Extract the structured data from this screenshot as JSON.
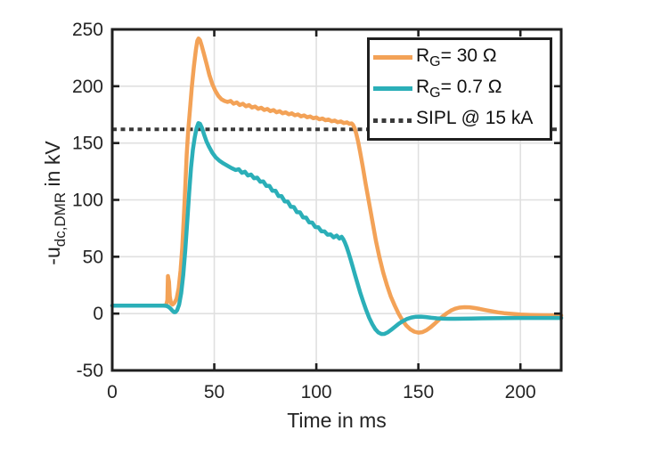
{
  "chart_data": {
    "type": "line",
    "title": "",
    "xlabel": "Time in ms",
    "ylabel": {
      "prefix": "-u",
      "sub": "dc,DMR",
      "suffix": " in kV"
    },
    "xlim": [
      0,
      220
    ],
    "ylim": [
      -50,
      250
    ],
    "xticks": [
      0,
      50,
      100,
      150,
      200
    ],
    "yticks": [
      -50,
      0,
      50,
      100,
      150,
      200,
      250
    ],
    "grid": true,
    "legend_position": "top-right",
    "sipl_value_kV": 162,
    "colors": {
      "axis": "#1f1f1f",
      "grid": "#e0e0e0",
      "tick_text": "#242424",
      "background": "#ffffff",
      "orange": "#f3a257",
      "teal": "#2bafb8",
      "sipl": "#3a3a3a"
    },
    "series": [
      {
        "id": "rg30",
        "name": "R_G = 30 Ohm",
        "color": "#f3a257",
        "style": "solid",
        "points": [
          [
            0,
            7
          ],
          [
            8,
            7
          ],
          [
            16,
            7
          ],
          [
            22,
            7
          ],
          [
            25,
            7
          ],
          [
            26.5,
            7.5
          ],
          [
            27,
            12
          ],
          [
            27.3,
            33
          ],
          [
            27.8,
            28
          ],
          [
            28.2,
            15
          ],
          [
            28.8,
            9
          ],
          [
            29.6,
            8
          ],
          [
            30.5,
            9.5
          ],
          [
            31.5,
            13
          ],
          [
            32.5,
            22
          ],
          [
            33.5,
            38
          ],
          [
            34.3,
            58
          ],
          [
            35,
            82
          ],
          [
            35.8,
            112
          ],
          [
            36.5,
            140
          ],
          [
            37.2,
            160
          ],
          [
            38,
            178
          ],
          [
            39,
            199
          ],
          [
            40,
            217
          ],
          [
            41,
            232
          ],
          [
            41.7,
            240
          ],
          [
            42.3,
            242
          ],
          [
            43,
            240.5
          ],
          [
            43.8,
            236
          ],
          [
            45,
            228
          ],
          [
            46.3,
            219
          ],
          [
            47.6,
            210
          ],
          [
            49,
            202
          ],
          [
            50.5,
            196
          ],
          [
            52,
            191.5
          ],
          [
            53.5,
            188.5
          ],
          [
            55,
            187
          ],
          [
            56.5,
            186.2
          ],
          [
            58,
            187
          ],
          [
            59.5,
            184.6
          ],
          [
            61,
            185.8
          ],
          [
            62.5,
            183.4
          ],
          [
            64,
            184.6
          ],
          [
            65.5,
            182.3
          ],
          [
            67,
            183.4
          ],
          [
            68.5,
            181.2
          ],
          [
            70,
            182.2
          ],
          [
            71.5,
            180.1
          ],
          [
            73,
            181.1
          ],
          [
            74.5,
            179.1
          ],
          [
            76,
            180
          ],
          [
            77.5,
            178.1
          ],
          [
            79,
            179
          ],
          [
            80.5,
            177.1
          ],
          [
            82,
            178
          ],
          [
            83.5,
            176.2
          ],
          [
            85,
            177
          ],
          [
            86.5,
            175.3
          ],
          [
            88,
            176.1
          ],
          [
            89.5,
            174.4
          ],
          [
            91,
            175.2
          ],
          [
            92.5,
            173.5
          ],
          [
            94,
            174.3
          ],
          [
            95.5,
            172.7
          ],
          [
            97,
            173.4
          ],
          [
            98.5,
            171.8
          ],
          [
            100,
            172.5
          ],
          [
            101.5,
            170.9
          ],
          [
            103,
            171.6
          ],
          [
            104.5,
            170.1
          ],
          [
            106,
            170.7
          ],
          [
            107.5,
            169.2
          ],
          [
            109,
            169.8
          ],
          [
            110.5,
            168.4
          ],
          [
            112,
            169
          ],
          [
            113.5,
            167.6
          ],
          [
            115,
            168.2
          ],
          [
            116.2,
            166.9
          ],
          [
            117.3,
            167.3
          ],
          [
            118,
            166
          ],
          [
            118.8,
            163
          ],
          [
            119.6,
            158
          ],
          [
            120.5,
            151
          ],
          [
            121.5,
            142
          ],
          [
            122.8,
            129
          ],
          [
            124.2,
            114
          ],
          [
            125.8,
            98
          ],
          [
            127.5,
            81
          ],
          [
            129.2,
            64
          ],
          [
            131,
            49
          ],
          [
            132.8,
            36
          ],
          [
            134.6,
            25
          ],
          [
            136.5,
            15
          ],
          [
            138.4,
            7
          ],
          [
            140.3,
            0
          ],
          [
            142.2,
            -6
          ],
          [
            144.1,
            -10.5
          ],
          [
            146,
            -13.8
          ],
          [
            148,
            -15.9
          ],
          [
            150,
            -16.8
          ],
          [
            152,
            -16.3
          ],
          [
            154,
            -14.6
          ],
          [
            156,
            -12
          ],
          [
            158,
            -8.9
          ],
          [
            160,
            -5.6
          ],
          [
            162,
            -2.4
          ],
          [
            164,
            0.4
          ],
          [
            166,
            2.7
          ],
          [
            168,
            4.3
          ],
          [
            170,
            5.2
          ],
          [
            172.5,
            5.6
          ],
          [
            175,
            5.5
          ],
          [
            177.5,
            4.9
          ],
          [
            180,
            4.1
          ],
          [
            183,
            3
          ],
          [
            186,
            2
          ],
          [
            189,
            1.1
          ],
          [
            192,
            0.4
          ],
          [
            196,
            -0.3
          ],
          [
            200,
            -0.8
          ],
          [
            205,
            -1.2
          ],
          [
            210,
            -1.4
          ],
          [
            215,
            -1.5
          ],
          [
            220,
            -1.6
          ]
        ]
      },
      {
        "id": "rg07",
        "name": "R_G = 0.7 Ohm",
        "color": "#2bafb8",
        "style": "solid",
        "points": [
          [
            0,
            7
          ],
          [
            8,
            7
          ],
          [
            16,
            7
          ],
          [
            22,
            7
          ],
          [
            25,
            7
          ],
          [
            26.5,
            6.8
          ],
          [
            27.5,
            6
          ],
          [
            28.5,
            4.5
          ],
          [
            29.5,
            2.5
          ],
          [
            30.3,
            1.2
          ],
          [
            31,
            1.3
          ],
          [
            31.8,
            3
          ],
          [
            32.8,
            8
          ],
          [
            33.8,
            18
          ],
          [
            34.8,
            34
          ],
          [
            35.8,
            56
          ],
          [
            36.8,
            82
          ],
          [
            37.7,
            107
          ],
          [
            38.6,
            128
          ],
          [
            39.5,
            144
          ],
          [
            40.4,
            155
          ],
          [
            41.3,
            163
          ],
          [
            42.2,
            167.5
          ],
          [
            43,
            167
          ],
          [
            43.9,
            163.5
          ],
          [
            45,
            157.5
          ],
          [
            46.2,
            151.5
          ],
          [
            47.5,
            146.5
          ],
          [
            49,
            141.5
          ],
          [
            50.7,
            137.5
          ],
          [
            52.5,
            134.5
          ],
          [
            54.5,
            132
          ],
          [
            56.5,
            130
          ],
          [
            58.5,
            128
          ],
          [
            60.5,
            126.3
          ],
          [
            62,
            127
          ],
          [
            63.5,
            123.8
          ],
          [
            65,
            124.8
          ],
          [
            66.5,
            121.5
          ],
          [
            68,
            122.3
          ],
          [
            69.5,
            119
          ],
          [
            71,
            119.6
          ],
          [
            72.5,
            116
          ],
          [
            74,
            116.3
          ],
          [
            75.5,
            112.3
          ],
          [
            77,
            112.4
          ],
          [
            78.5,
            108
          ],
          [
            80,
            108
          ],
          [
            81.5,
            103.4
          ],
          [
            83,
            103.3
          ],
          [
            84.5,
            98.7
          ],
          [
            86,
            98.5
          ],
          [
            87.5,
            93.9
          ],
          [
            89,
            93.7
          ],
          [
            90.5,
            89.2
          ],
          [
            92,
            89
          ],
          [
            93.5,
            84.6
          ],
          [
            95,
            84.4
          ],
          [
            96.5,
            80.2
          ],
          [
            98,
            80
          ],
          [
            99.5,
            76.1
          ],
          [
            101,
            75.9
          ],
          [
            102.5,
            72.4
          ],
          [
            104,
            72.3
          ],
          [
            105.5,
            69.4
          ],
          [
            107,
            69.6
          ],
          [
            108.5,
            67
          ],
          [
            110,
            68.6
          ],
          [
            111.3,
            66
          ],
          [
            112.4,
            67.6
          ],
          [
            113.2,
            65.5
          ],
          [
            114,
            62.5
          ],
          [
            114.9,
            58.5
          ],
          [
            115.8,
            53.5
          ],
          [
            116.8,
            47.5
          ],
          [
            117.9,
            40.8
          ],
          [
            119,
            33.8
          ],
          [
            120.2,
            26.4
          ],
          [
            121.5,
            18.6
          ],
          [
            122.9,
            10.8
          ],
          [
            124.4,
            3.2
          ],
          [
            125.9,
            -3.6
          ],
          [
            127.4,
            -9.3
          ],
          [
            128.9,
            -13.7
          ],
          [
            130.4,
            -16.6
          ],
          [
            131.9,
            -18
          ],
          [
            133.4,
            -17.9
          ],
          [
            134.9,
            -16.6
          ],
          [
            136.6,
            -14.4
          ],
          [
            138.4,
            -11.8
          ],
          [
            140.3,
            -9.1
          ],
          [
            142.3,
            -6.7
          ],
          [
            144.4,
            -4.8
          ],
          [
            146.6,
            -3.5
          ],
          [
            148.9,
            -2.8
          ],
          [
            151.3,
            -2.7
          ],
          [
            153.8,
            -3.1
          ],
          [
            156.4,
            -3.7
          ],
          [
            159.1,
            -4.2
          ],
          [
            162,
            -4.5
          ],
          [
            165,
            -4.6
          ],
          [
            168,
            -4.6
          ],
          [
            172,
            -4.5
          ],
          [
            176,
            -4.4
          ],
          [
            181,
            -4.2
          ],
          [
            186,
            -4.1
          ],
          [
            192,
            -4
          ],
          [
            199,
            -3.9
          ],
          [
            206,
            -3.9
          ],
          [
            213,
            -3.9
          ],
          [
            220,
            -3.9
          ]
        ]
      },
      {
        "id": "sipl",
        "name": "SIPL @ 15 kA",
        "color": "#3a3a3a",
        "style": "dotted",
        "points": [
          [
            0,
            162
          ],
          [
            220,
            162
          ]
        ]
      }
    ],
    "legend": [
      {
        "label_prefix": "R",
        "label_sub": "G",
        "label_suffix": "= 30 Ω",
        "color": "#f3a257",
        "style": "solid"
      },
      {
        "label_prefix": "R",
        "label_sub": "G",
        "label_suffix": "= 0.7 Ω",
        "color": "#2bafb8",
        "style": "solid"
      },
      {
        "label_prefix": "SIPL @ 15 kA",
        "label_sub": "",
        "label_suffix": "",
        "color": "#3a3a3a",
        "style": "dotted"
      }
    ]
  }
}
